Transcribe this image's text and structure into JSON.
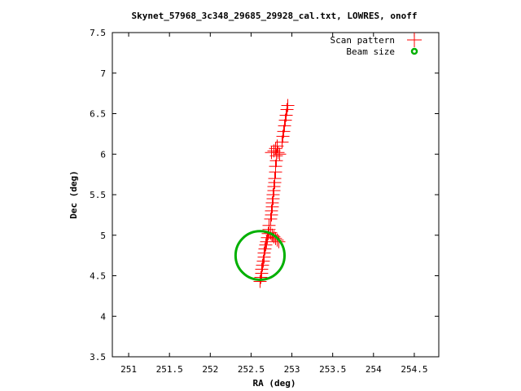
{
  "chart_data": {
    "type": "scatter",
    "title": "Skynet_57968_3c348_29685_29928_cal.txt, LOWRES, onoff",
    "xlabel": "RA (deg)",
    "ylabel": "Dec (deg)",
    "xlim": [
      250.8,
      254.8
    ],
    "ylim": [
      3.5,
      7.5
    ],
    "x_ticks": [
      "251",
      "251.5",
      "252",
      "252.5",
      "253",
      "253.5",
      "254",
      "254.5"
    ],
    "y_ticks": [
      "3.5",
      "4",
      "4.5",
      "5",
      "5.5",
      "6",
      "6.5",
      "7",
      "7.5"
    ],
    "grid": false,
    "legend_position": "top-right",
    "series": [
      {
        "name": "Scan pattern",
        "marker": "plus",
        "color": "#ff0000",
        "points": [
          [
            252.61,
            4.43
          ],
          [
            252.62,
            4.48
          ],
          [
            252.63,
            4.53
          ],
          [
            252.63,
            4.58
          ],
          [
            252.64,
            4.63
          ],
          [
            252.65,
            4.68
          ],
          [
            252.66,
            4.73
          ],
          [
            252.66,
            4.78
          ],
          [
            252.67,
            4.83
          ],
          [
            252.68,
            4.88
          ],
          [
            252.69,
            4.92
          ],
          [
            252.7,
            4.97
          ],
          [
            252.71,
            5.02
          ],
          [
            252.72,
            5.07
          ],
          [
            252.72,
            5.12
          ],
          [
            252.78,
            4.98
          ],
          [
            252.8,
            4.96
          ],
          [
            252.82,
            4.94
          ],
          [
            252.84,
            4.92
          ],
          [
            252.76,
            5.0
          ],
          [
            252.74,
            5.03
          ],
          [
            252.74,
            5.2
          ],
          [
            252.75,
            5.25
          ],
          [
            252.75,
            5.3
          ],
          [
            252.76,
            5.35
          ],
          [
            252.76,
            5.4
          ],
          [
            252.77,
            5.45
          ],
          [
            252.77,
            5.5
          ],
          [
            252.78,
            5.55
          ],
          [
            252.78,
            5.6
          ],
          [
            252.79,
            5.65
          ],
          [
            252.79,
            5.7
          ],
          [
            252.8,
            5.78
          ],
          [
            252.8,
            5.85
          ],
          [
            252.81,
            5.92
          ],
          [
            252.81,
            5.98
          ],
          [
            252.75,
            6.02
          ],
          [
            252.78,
            6.04
          ],
          [
            252.83,
            6.02
          ],
          [
            252.85,
            6.0
          ],
          [
            252.8,
            6.07
          ],
          [
            252.82,
            6.1
          ],
          [
            252.88,
            6.15
          ],
          [
            252.89,
            6.22
          ],
          [
            252.9,
            6.28
          ],
          [
            252.91,
            6.35
          ],
          [
            252.92,
            6.42
          ],
          [
            252.93,
            6.48
          ],
          [
            252.94,
            6.55
          ],
          [
            252.95,
            6.6
          ]
        ]
      },
      {
        "name": "Beam size",
        "marker": "circle",
        "color": "#00b000",
        "center": [
          252.61,
          4.75
        ],
        "radius": 0.3
      }
    ]
  }
}
